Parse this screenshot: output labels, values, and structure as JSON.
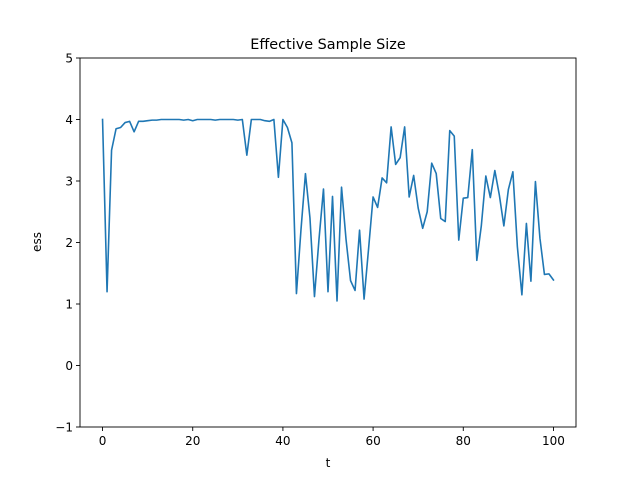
{
  "chart_data": {
    "type": "line",
    "title": "Effective Sample Size",
    "xlabel": "t",
    "ylabel": "ess",
    "xlim": [
      -5,
      105
    ],
    "ylim": [
      -1,
      5
    ],
    "xticks": [
      0,
      20,
      40,
      60,
      80,
      100
    ],
    "yticks": [
      -1,
      0,
      1,
      2,
      3,
      4,
      5
    ],
    "xtick_labels": [
      "0",
      "20",
      "40",
      "60",
      "80",
      "100"
    ],
    "ytick_labels": [
      "−1",
      "0",
      "1",
      "2",
      "3",
      "4",
      "5"
    ],
    "grid": false,
    "line_color": "#1f77b4",
    "series": [
      {
        "x": [
          0,
          1,
          2,
          3,
          4,
          5,
          6,
          7,
          8,
          9,
          10,
          11,
          12,
          13,
          14,
          15,
          16,
          17,
          18,
          19,
          20,
          21,
          22,
          23,
          24,
          25,
          26,
          27,
          28,
          29,
          30,
          31,
          32,
          33,
          34,
          35,
          36,
          37,
          38,
          39,
          40,
          41,
          42,
          43,
          44,
          45,
          46,
          47,
          48,
          49,
          50,
          51,
          52,
          53,
          54,
          55,
          56,
          57,
          58,
          59,
          60,
          61,
          62,
          63,
          64,
          65,
          66,
          67,
          68,
          69,
          70,
          71,
          72,
          73,
          74,
          75,
          76,
          77,
          78,
          79,
          80,
          81,
          82,
          83,
          84,
          85,
          86,
          87,
          88,
          89,
          90,
          91,
          92,
          93,
          94,
          95,
          96,
          97,
          98,
          99,
          100
        ],
        "values": [
          4.0,
          1.2,
          3.5,
          3.85,
          3.87,
          3.95,
          3.97,
          3.8,
          3.97,
          3.97,
          3.98,
          3.99,
          3.99,
          4.0,
          4.0,
          4.0,
          4.0,
          4.0,
          3.99,
          4.0,
          3.98,
          4.0,
          4.0,
          4.0,
          4.0,
          3.99,
          4.0,
          4.0,
          4.0,
          4.0,
          3.99,
          4.0,
          3.42,
          4.0,
          4.0,
          4.0,
          3.98,
          3.97,
          4.0,
          3.06,
          4.0,
          3.87,
          3.62,
          1.17,
          2.2,
          3.12,
          2.4,
          1.12,
          2.05,
          2.87,
          1.2,
          2.75,
          1.05,
          2.9,
          2.05,
          1.38,
          1.22,
          2.2,
          1.08,
          1.9,
          2.74,
          2.57,
          3.05,
          2.97,
          3.88,
          3.27,
          3.38,
          3.88,
          2.74,
          3.09,
          2.56,
          2.23,
          2.5,
          3.29,
          3.12,
          2.39,
          2.34,
          3.82,
          3.73,
          2.04,
          2.72,
          2.73,
          3.51,
          1.71,
          2.27,
          3.08,
          2.73,
          3.17,
          2.77,
          2.27,
          2.86,
          3.15,
          1.93,
          1.15,
          2.31,
          1.37,
          2.99,
          2.07,
          1.48,
          1.49,
          1.39
        ]
      }
    ]
  }
}
